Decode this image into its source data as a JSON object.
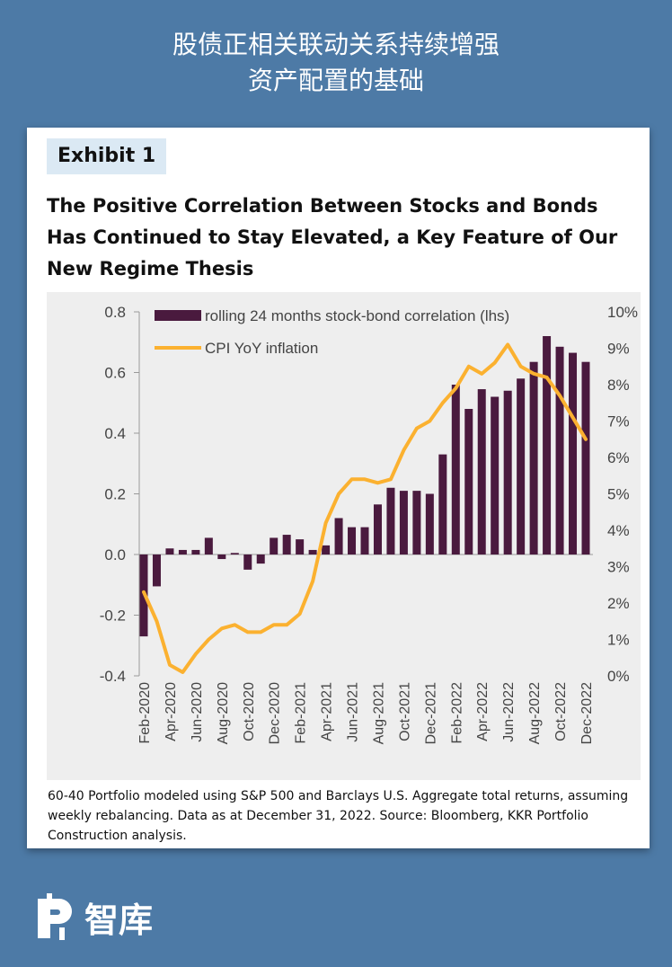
{
  "header": {
    "line1": "股债正相关联动关系持续增强",
    "line2": "资产配置的基础"
  },
  "card": {
    "badge": "Exhibit 1",
    "title": "The Positive Correlation Between Stocks and Bonds Has Continued to Stay Elevated, a Key Feature of Our New Regime Thesis",
    "footnote": "60-40 Portfolio modeled using S&P 500 and Barclays U.S. Aggregate total returns, assuming weekly rebalancing. Data as at December 31, 2022. Source: Bloomberg, KKR Portfolio Construction analysis."
  },
  "logo": {
    "text": "智库",
    "icon": "zhiku-logo-icon"
  },
  "colors": {
    "bar": "#4a1a3e",
    "line": "#fbb130",
    "header_bg": "#4d7aa6",
    "chart_bg": "#eeeeee"
  },
  "chart_data": {
    "type": "bar",
    "x": [
      "Feb-2020",
      "Mar-2020",
      "Apr-2020",
      "May-2020",
      "Jun-2020",
      "Jul-2020",
      "Aug-2020",
      "Sep-2020",
      "Oct-2020",
      "Nov-2020",
      "Dec-2020",
      "Jan-2021",
      "Feb-2021",
      "Mar-2021",
      "Apr-2021",
      "May-2021",
      "Jun-2021",
      "Jul-2021",
      "Aug-2021",
      "Sep-2021",
      "Oct-2021",
      "Nov-2021",
      "Dec-2021",
      "Jan-2022",
      "Feb-2022",
      "Mar-2022",
      "Apr-2022",
      "May-2022",
      "Jun-2022",
      "Jul-2022",
      "Aug-2022",
      "Sep-2022",
      "Oct-2022",
      "Nov-2022",
      "Dec-2022"
    ],
    "x_tick_labels": [
      "Feb-2020",
      "Apr-2020",
      "Jun-2020",
      "Aug-2020",
      "Oct-2020",
      "Dec-2020",
      "Feb-2021",
      "Apr-2021",
      "Jun-2021",
      "Aug-2021",
      "Oct-2021",
      "Dec-2021",
      "Feb-2022",
      "Apr-2022",
      "Jun-2022",
      "Aug-2022",
      "Oct-2022",
      "Dec-2022"
    ],
    "series": [
      {
        "name": "rolling 24 months stock-bond correlation (lhs)",
        "type": "bar",
        "axis": "left",
        "values": [
          -0.27,
          -0.105,
          0.02,
          0.015,
          0.015,
          0.055,
          -0.015,
          0.005,
          -0.05,
          -0.03,
          0.055,
          0.065,
          0.05,
          0.015,
          0.03,
          0.12,
          0.09,
          0.09,
          0.165,
          0.22,
          0.21,
          0.21,
          0.2,
          0.33,
          0.56,
          0.48,
          0.545,
          0.52,
          0.54,
          0.58,
          0.635,
          0.72,
          0.685,
          0.665,
          0.635
        ]
      },
      {
        "name": "CPI YoY inflation",
        "type": "line",
        "axis": "right",
        "values": [
          2.3,
          1.5,
          0.3,
          0.1,
          0.6,
          1.0,
          1.3,
          1.4,
          1.2,
          1.2,
          1.4,
          1.4,
          1.7,
          2.6,
          4.2,
          5.0,
          5.4,
          5.4,
          5.3,
          5.4,
          6.2,
          6.8,
          7.0,
          7.5,
          7.9,
          8.5,
          8.3,
          8.6,
          9.1,
          8.5,
          8.3,
          8.2,
          7.7,
          7.1,
          6.5
        ]
      }
    ],
    "y_left": {
      "range": [
        -0.4,
        0.8
      ],
      "tick_labels": [
        "0.8",
        "0.6",
        "0.4",
        "0.2",
        "0.0",
        "-0.2",
        "-0.4"
      ]
    },
    "y_right": {
      "range": [
        0,
        10
      ],
      "tick_labels": [
        "10%",
        "9%",
        "8%",
        "7%",
        "6%",
        "5%",
        "4%",
        "3%",
        "2%",
        "1%",
        "0%"
      ]
    },
    "legend": {
      "placement": "top-left",
      "items": [
        "rolling 24 months stock-bond correlation (lhs)",
        "CPI YoY inflation"
      ]
    },
    "grid": false
  }
}
